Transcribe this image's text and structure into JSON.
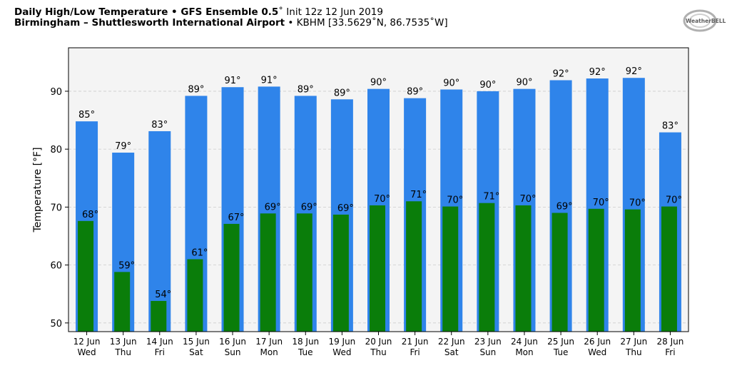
{
  "header": {
    "title_bold": "Daily High/Low Temperature • GFS Ensemble 0.5",
    "title_rest": "˚ Init 12z 12 Jun 2019",
    "subtitle_bold": "Birmingham – Shuttlesworth International Airport",
    "subtitle_rest": " • KBHM [33.5629˚N, 86.7535˚W]"
  },
  "logo": {
    "text": "WeatherBELL",
    "icon": "weatherbell-logo-icon"
  },
  "colors": {
    "high": "#2f84ea",
    "low": "#0a7d0a",
    "plot_bg": "#f4f4f4",
    "grid": "#cccccc"
  },
  "chart_data": {
    "type": "bar",
    "ylabel": "Temperature [°F]",
    "ylim": [
      48.5,
      97.5
    ],
    "yticks": [
      50,
      60,
      70,
      80,
      90
    ],
    "grid": true,
    "categories": [
      {
        "date": "12 Jun",
        "day": "Wed"
      },
      {
        "date": "13 Jun",
        "day": "Thu"
      },
      {
        "date": "14 Jun",
        "day": "Fri"
      },
      {
        "date": "15 Jun",
        "day": "Sat"
      },
      {
        "date": "16 Jun",
        "day": "Sun"
      },
      {
        "date": "17 Jun",
        "day": "Mon"
      },
      {
        "date": "18 Jun",
        "day": "Tue"
      },
      {
        "date": "19 Jun",
        "day": "Wed"
      },
      {
        "date": "20 Jun",
        "day": "Thu"
      },
      {
        "date": "21 Jun",
        "day": "Fri"
      },
      {
        "date": "22 Jun",
        "day": "Sat"
      },
      {
        "date": "23 Jun",
        "day": "Sun"
      },
      {
        "date": "24 Jun",
        "day": "Mon"
      },
      {
        "date": "25 Jun",
        "day": "Tue"
      },
      {
        "date": "26 Jun",
        "day": "Wed"
      },
      {
        "date": "27 Jun",
        "day": "Thu"
      },
      {
        "date": "28 Jun",
        "day": "Fri"
      }
    ],
    "series": [
      {
        "key": "high",
        "values": [
          84.8,
          79.4,
          83.1,
          89.2,
          90.7,
          90.8,
          89.2,
          88.6,
          90.4,
          88.8,
          90.3,
          90.0,
          90.4,
          91.9,
          92.2,
          92.3,
          82.9
        ],
        "labels": [
          "85°",
          "79°",
          "83°",
          "89°",
          "91°",
          "91°",
          "89°",
          "89°",
          "90°",
          "89°",
          "90°",
          "90°",
          "90°",
          "92°",
          "92°",
          "92°",
          "83°"
        ]
      },
      {
        "key": "low",
        "values": [
          67.6,
          58.8,
          53.8,
          61.0,
          67.1,
          68.9,
          68.9,
          68.7,
          70.3,
          71.0,
          70.1,
          70.7,
          70.3,
          69.0,
          69.7,
          69.6,
          70.1
        ],
        "labels": [
          "68°",
          "59°",
          "54°",
          "61°",
          "67°",
          "69°",
          "69°",
          "69°",
          "70°",
          "71°",
          "70°",
          "71°",
          "70°",
          "69°",
          "70°",
          "70°",
          "70°"
        ]
      }
    ]
  }
}
